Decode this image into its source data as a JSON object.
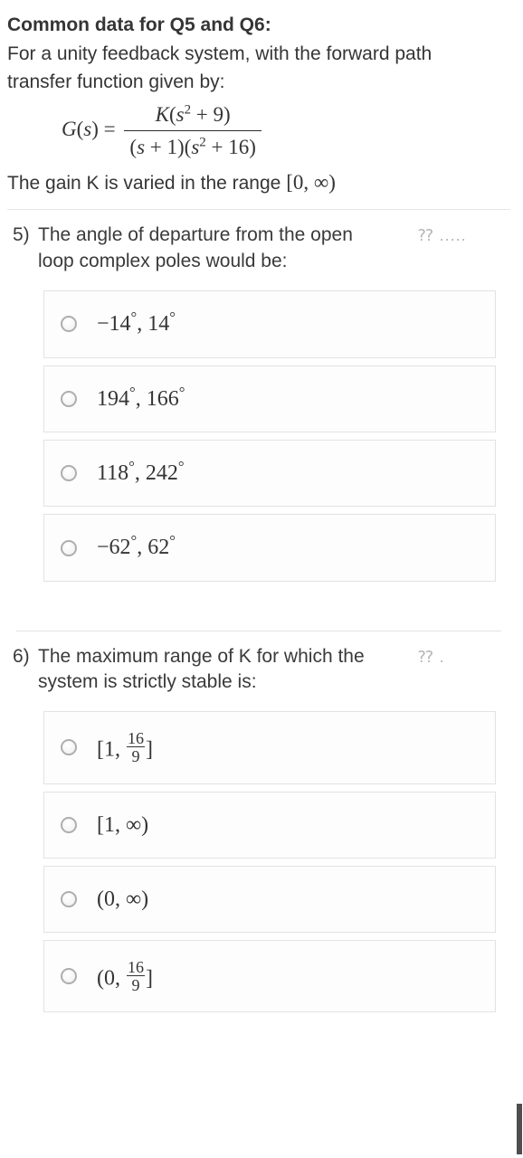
{
  "header": {
    "title": "Common data for Q5 and Q6:",
    "line_a": "For a unity feedback system, with the forward path",
    "line_b": "transfer function given by:",
    "eq_lhs_G": "G",
    "eq_lhs_s": "s",
    "eq_eq": " = ",
    "num_K": "K",
    "num_s": "s",
    "num_plus9": " + 9)",
    "den_s1": "s",
    "den_plus1": " + 1)(",
    "den_s2": "s",
    "den_plus16": " + 16)",
    "gain_before": "The gain K is varied in the range   ",
    "gain_range": "[0, ∞)"
  },
  "q5": {
    "number": "5)",
    "text_a": "The angle of departure from the open",
    "text_b": "loop complex poles would be:",
    "side_hint": "⁇ .....",
    "options": {
      "a": "−14°, 14°",
      "b": "194°, 166°",
      "c": "118°, 242°",
      "d": "−62°, 62°"
    }
  },
  "q6": {
    "number": "6)",
    "text_a": "The maximum range of K for which the",
    "text_b": "system is strictly stable is:",
    "side_hint": "⁇ .",
    "options": {
      "a_open": "[1, ",
      "a_n": "16",
      "a_d": "9",
      "a_close": "]",
      "b": "[1, ∞)",
      "c": "(0, ∞)",
      "d_open": "(0, ",
      "d_n": "16",
      "d_d": "9",
      "d_close": "]"
    }
  },
  "style": {
    "text_color": "#353535",
    "border_color": "#e3e3e3",
    "radio_border": "#aeaeae",
    "background": "#ffffff",
    "option_bg": "#fdfdfd",
    "hint_color": "#b6b6b6"
  }
}
